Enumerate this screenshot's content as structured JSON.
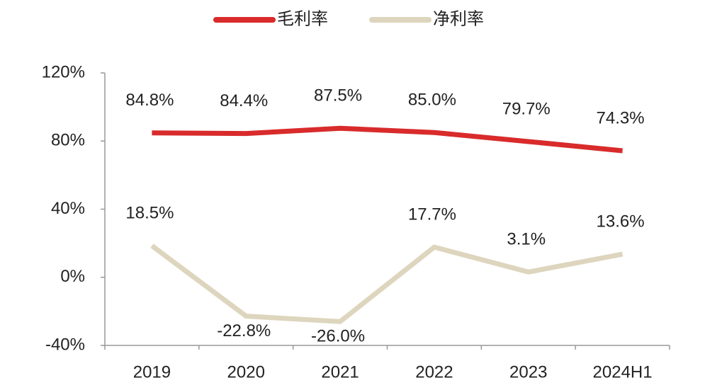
{
  "chart_data": {
    "type": "line",
    "categories": [
      "2019",
      "2020",
      "2021",
      "2022",
      "2023",
      "2024H1"
    ],
    "series": [
      {
        "name": "毛利率",
        "color": "#d92b2b",
        "values": [
          84.8,
          84.4,
          87.5,
          85.0,
          79.7,
          74.3
        ],
        "value_labels": [
          "84.8%",
          "84.4%",
          "87.5%",
          "85.0%",
          "79.7%",
          "74.3%"
        ]
      },
      {
        "name": "净利率",
        "color": "#ddd5bd",
        "values": [
          18.5,
          -22.8,
          -26.0,
          17.7,
          3.1,
          13.6
        ],
        "value_labels": [
          "18.5%",
          "-22.8%",
          "-26.0%",
          "17.7%",
          "3.1%",
          "13.6%"
        ]
      }
    ],
    "ylim": [
      -40,
      120
    ],
    "yticks": [
      {
        "value": -40,
        "label": "-40%"
      },
      {
        "value": 0,
        "label": "0%"
      },
      {
        "value": 40,
        "label": "40%"
      },
      {
        "value": 80,
        "label": "80%"
      },
      {
        "value": 120,
        "label": "120%"
      }
    ],
    "legend": "top"
  }
}
